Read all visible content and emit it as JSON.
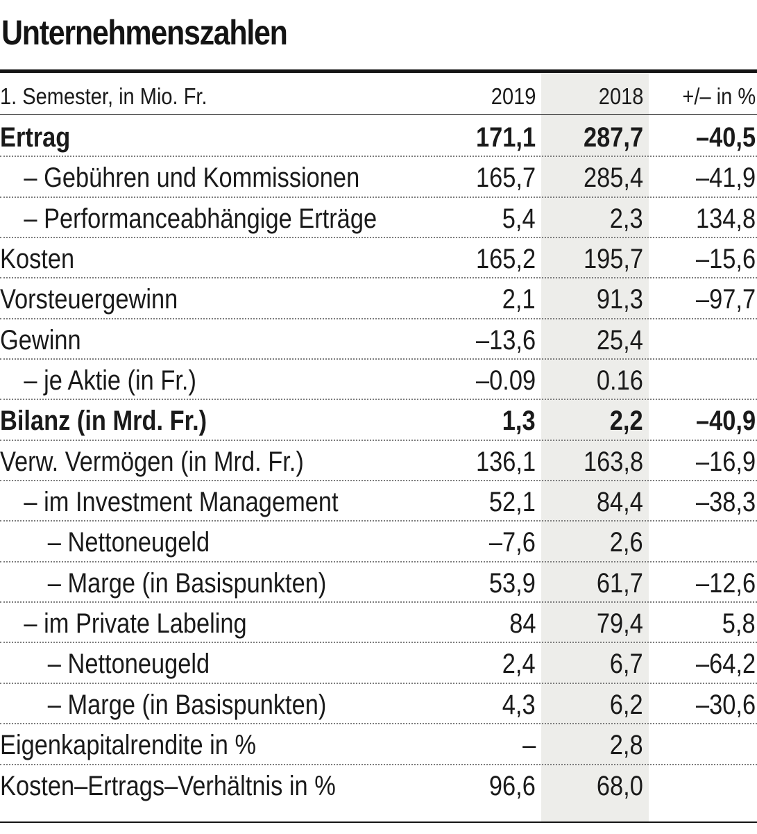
{
  "title": "Unternehmenszahlen",
  "header": {
    "label": "1. Semester, in Mio. Fr.",
    "col1": "2019",
    "col2": "2018",
    "col3": "+/– in %"
  },
  "colors": {
    "text": "#141414",
    "shade": "#ededea",
    "dots": "#7d7d7d"
  },
  "rows": [
    {
      "label": "Ertrag",
      "v2019": "171,1",
      "v2018": "287,7",
      "change": "–40,5",
      "bold": true,
      "indent": 0
    },
    {
      "label": "– Gebühren und Kommissionen",
      "v2019": "165,7",
      "v2018": "285,4",
      "change": "–41,9",
      "bold": false,
      "indent": 1
    },
    {
      "label": "– Performanceabhängige Erträge",
      "v2019": "5,4",
      "v2018": "2,3",
      "change": "134,8",
      "bold": false,
      "indent": 1
    },
    {
      "label": "Kosten",
      "v2019": "165,2",
      "v2018": "195,7",
      "change": "–15,6",
      "bold": false,
      "indent": 0
    },
    {
      "label": "Vorsteuergewinn",
      "v2019": "2,1",
      "v2018": "91,3",
      "change": "–97,7",
      "bold": false,
      "indent": 0
    },
    {
      "label": "Gewinn",
      "v2019": "–13,6",
      "v2018": "25,4",
      "change": "",
      "bold": false,
      "indent": 0
    },
    {
      "label": "– je Aktie (in Fr.)",
      "v2019": "–0.09",
      "v2018": "0.16",
      "change": "",
      "bold": false,
      "indent": 1
    },
    {
      "label": "Bilanz (in Mrd. Fr.)",
      "v2019": "1,3",
      "v2018": "2,2",
      "change": "–40,9",
      "bold": true,
      "indent": 0
    },
    {
      "label": "Verw. Vermögen (in Mrd. Fr.)",
      "v2019": "136,1",
      "v2018": "163,8",
      "change": "–16,9",
      "bold": false,
      "indent": 0
    },
    {
      "label": "– im Investment Management",
      "v2019": "52,1",
      "v2018": "84,4",
      "change": "–38,3",
      "bold": false,
      "indent": 1
    },
    {
      "label": "– Nettoneugeld",
      "v2019": "–7,6",
      "v2018": "2,6",
      "change": "",
      "bold": false,
      "indent": 2
    },
    {
      "label": "– Marge (in Basispunkten)",
      "v2019": "53,9",
      "v2018": "61,7",
      "change": "–12,6",
      "bold": false,
      "indent": 2
    },
    {
      "label": "– im Private Labeling",
      "v2019": "84",
      "v2018": "79,4",
      "change": "5,8",
      "bold": false,
      "indent": 1
    },
    {
      "label": "– Nettoneugeld",
      "v2019": "2,4",
      "v2018": "6,7",
      "change": "–64,2",
      "bold": false,
      "indent": 2
    },
    {
      "label": "– Marge (in Basispunkten)",
      "v2019": "4,3",
      "v2018": "6,2",
      "change": "–30,6",
      "bold": false,
      "indent": 2
    },
    {
      "label": "Eigenkapitalrendite in %",
      "v2019": "–",
      "v2018": "2,8",
      "change": "",
      "bold": false,
      "indent": 0
    },
    {
      "label": "Kosten–Ertrags–Verhältnis in %",
      "v2019": "96,6",
      "v2018": "68,0",
      "change": "",
      "bold": false,
      "indent": 0
    }
  ],
  "chart_data": {
    "type": "table",
    "title": "Unternehmenszahlen",
    "subtitle": "1. Semester, in Mio. Fr.",
    "columns": [
      "2019",
      "2018",
      "+/– in %"
    ],
    "series": [
      {
        "name": "2019",
        "values": [
          "171,1",
          "165,7",
          "5,4",
          "165,2",
          "2,1",
          "–13,6",
          "–0.09",
          "1,3",
          "136,1",
          "52,1",
          "–7,6",
          "53,9",
          "84",
          "2,4",
          "4,3",
          "–",
          "96,6"
        ]
      },
      {
        "name": "2018",
        "values": [
          "287,7",
          "285,4",
          "2,3",
          "195,7",
          "91,3",
          "25,4",
          "0.16",
          "2,2",
          "163,8",
          "84,4",
          "2,6",
          "61,7",
          "79,4",
          "6,7",
          "6,2",
          "2,8",
          "68,0"
        ]
      },
      {
        "name": "+/– in %",
        "values": [
          "–40,5",
          "–41,9",
          "134,8",
          "–15,6",
          "–97,7",
          "",
          "",
          "–40,9",
          "–16,9",
          "–38,3",
          "",
          "–12,6",
          "5,8",
          "–64,2",
          "–30,6",
          "",
          ""
        ]
      }
    ],
    "categories": [
      "Ertrag",
      "– Gebühren und Kommissionen",
      "– Performanceabhängige Erträge",
      "Kosten",
      "Vorsteuergewinn",
      "Gewinn",
      "– je Aktie (in Fr.)",
      "Bilanz (in Mrd. Fr.)",
      "Verw. Vermögen (in Mrd. Fr.)",
      "– im Investment Management",
      "– Nettoneugeld",
      "– Marge (in Basispunkten)",
      "– im Private Labeling",
      "– Nettoneugeld",
      "– Marge (in Basispunkten)",
      "Eigenkapitalrendite in %",
      "Kosten–Ertrags–Verhältnis in %"
    ]
  }
}
